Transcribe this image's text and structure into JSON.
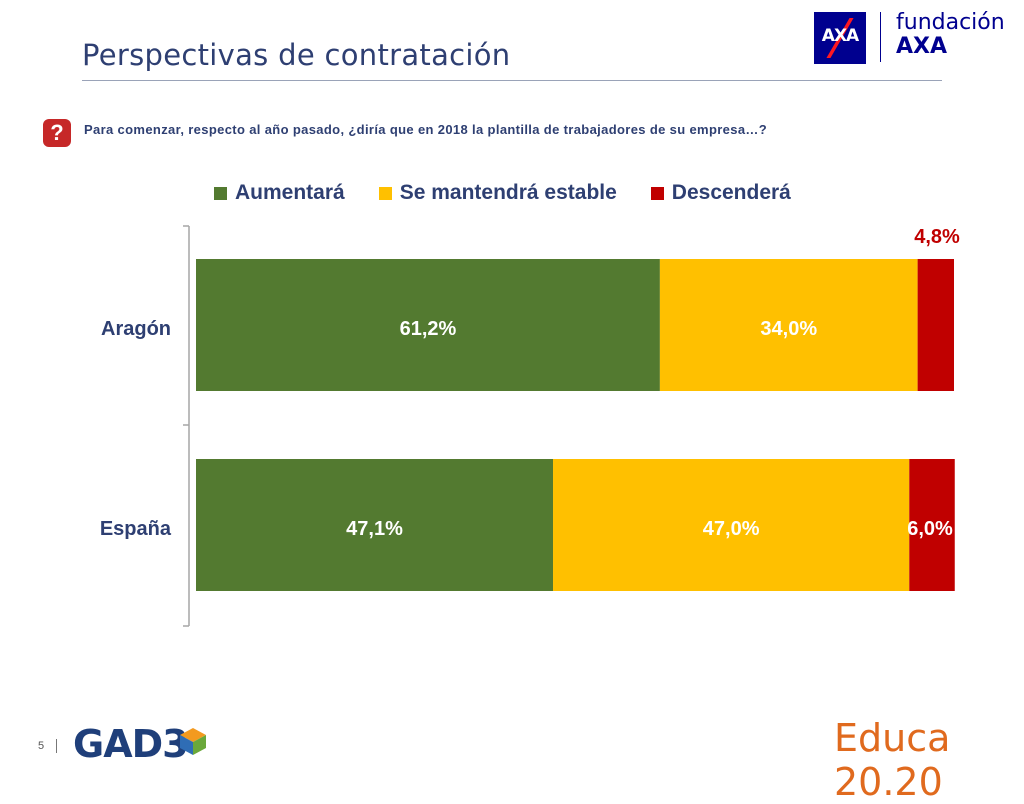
{
  "header": {
    "title": "Perspectivas de contratación",
    "logo_mark": "AXA",
    "logo_line1": "fundación",
    "logo_line2": "AXA"
  },
  "question": {
    "icon": "?",
    "text": "Para comenzar, respecto al año pasado, ¿diría que en 2018 la plantilla de trabajadores de su empresa…?"
  },
  "colors": {
    "aumentara": "#537a30",
    "estable": "#ffc000",
    "descendera": "#c00000",
    "title": "#2e3f72"
  },
  "chart_data": {
    "type": "bar",
    "orientation": "horizontal",
    "stacked": true,
    "categories": [
      "Aragón",
      "España"
    ],
    "series": [
      {
        "name": "Aumentará",
        "values": [
          61.2,
          47.1
        ],
        "labels": [
          "61,2%",
          "47,1%"
        ]
      },
      {
        "name": "Se mantendrá estable",
        "values": [
          34.0,
          47.0
        ],
        "labels": [
          "34,0%",
          "47,0%"
        ]
      },
      {
        "name": "Descenderá",
        "values": [
          4.8,
          6.0
        ],
        "labels": [
          "4,8%",
          "6,0%"
        ]
      }
    ],
    "xlim": [
      0,
      100
    ],
    "legend": "top",
    "grid": false
  },
  "footer": {
    "page": "5",
    "brand_left": "GAD3",
    "brand_right": "Educa 20.20"
  }
}
